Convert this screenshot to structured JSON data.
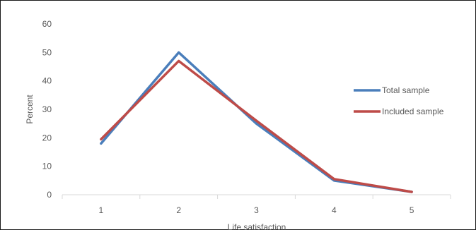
{
  "chart_data": {
    "type": "line",
    "title": "",
    "xlabel": "Life satisfaction",
    "ylabel": "Percent",
    "categories": [
      "1",
      "2",
      "3",
      "4",
      "5"
    ],
    "ylim": [
      0,
      60
    ],
    "yticks": [
      0,
      10,
      20,
      30,
      40,
      50,
      60
    ],
    "grid": false,
    "legend_position": "right",
    "series": [
      {
        "name": "Total sample",
        "color": "#4A7EBB",
        "values": [
          18,
          50,
          25,
          5,
          1
        ]
      },
      {
        "name": "Included sample",
        "color": "#BE4B48",
        "values": [
          19.5,
          47,
          26,
          5.5,
          1
        ]
      }
    ]
  }
}
